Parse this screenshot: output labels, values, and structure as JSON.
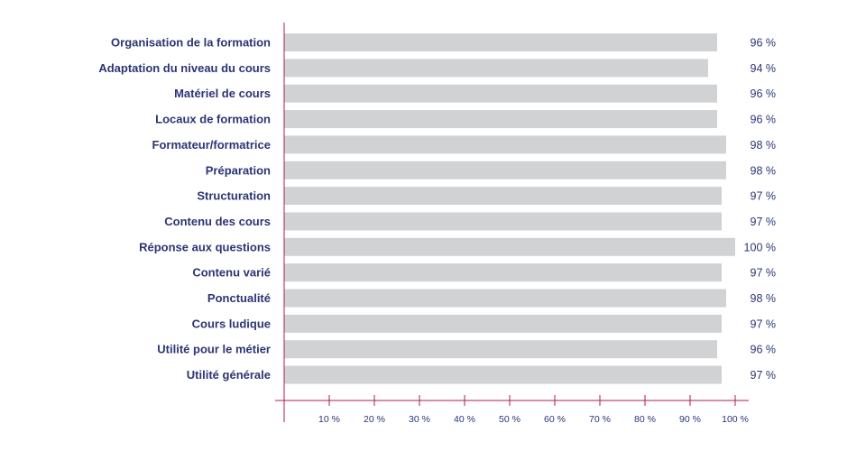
{
  "colors": {
    "bar": "#d1d2d4",
    "axis": "#b3194e",
    "label_text": "#2c3575"
  },
  "chart_data": {
    "type": "bar",
    "orientation": "horizontal",
    "categories": [
      "Organisation de la formation",
      "Adaptation du niveau du cours",
      "Matériel de cours",
      "Locaux de formation",
      "Formateur/formatrice",
      "Préparation",
      "Structuration",
      "Contenu des cours",
      "Réponse aux questions",
      "Contenu varié",
      "Ponctualité",
      "Cours ludique",
      "Utilité pour le métier",
      "Utilité générale"
    ],
    "values": [
      96,
      94,
      96,
      96,
      98,
      98,
      97,
      97,
      100,
      97,
      98,
      97,
      96,
      97
    ],
    "value_labels": [
      "96 %",
      "94 %",
      "96 %",
      "96 %",
      "98 %",
      "98 %",
      "97 %",
      "97 %",
      "100 %",
      "97 %",
      "98 %",
      "97 %",
      "96 %",
      "97 %"
    ],
    "xlim": [
      0,
      100
    ],
    "xticks": [
      10,
      20,
      30,
      40,
      50,
      60,
      70,
      80,
      90,
      100
    ],
    "xtick_labels": [
      "10 %",
      "20 %",
      "30 %",
      "40 %",
      "50 %",
      "60 %",
      "70 %",
      "80 %",
      "90 %",
      "100 %"
    ],
    "grid": false,
    "legend": "none"
  }
}
